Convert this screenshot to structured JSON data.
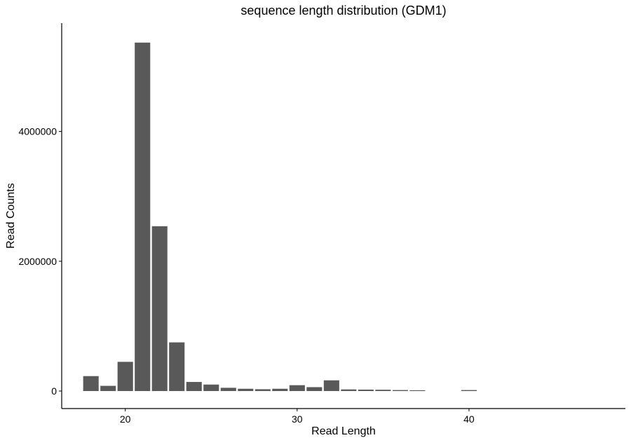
{
  "chart_data": {
    "type": "bar",
    "title": "sequence length distribution (GDM1)",
    "xlabel": "Read Length",
    "ylabel": "Read Counts",
    "x": [
      18,
      19,
      20,
      21,
      22,
      23,
      24,
      25,
      26,
      27,
      28,
      29,
      30,
      31,
      32,
      33,
      34,
      35,
      36,
      37,
      40
    ],
    "values": [
      230000,
      80000,
      450000,
      5370000,
      2540000,
      750000,
      140000,
      100000,
      50000,
      35000,
      28000,
      35000,
      90000,
      60000,
      165000,
      25000,
      22000,
      20000,
      15000,
      12000,
      15000
    ],
    "xlim": [
      16.3,
      49.1
    ],
    "ylim": [
      -270000,
      5670000
    ],
    "x_ticks": [
      20,
      30,
      40
    ],
    "x_tick_labels": [
      "20",
      "30",
      "40"
    ],
    "y_ticks": [
      0,
      2000000,
      4000000
    ],
    "y_tick_labels": [
      "0",
      "2000000",
      "4000000"
    ],
    "grid": false,
    "legend": "none",
    "bar_color": "#595959",
    "axis_color": "#000000"
  }
}
